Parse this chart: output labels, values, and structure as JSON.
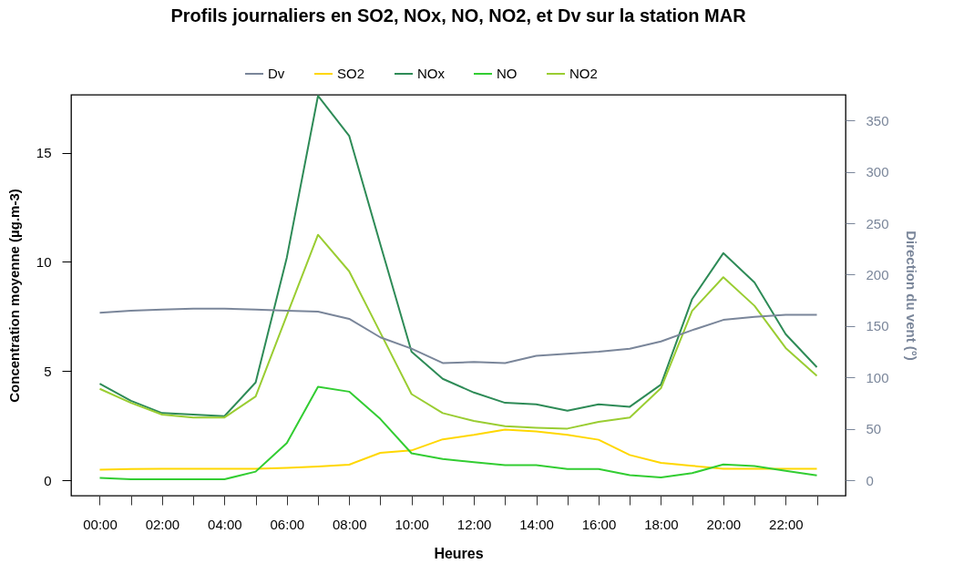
{
  "chart_data": {
    "type": "line",
    "title": "Profils journaliers en SO2, NOx, NO, NO2,  et Dv sur la station MAR",
    "xlabel": "Heures",
    "ylabel": "Concentration moyenne (µg.m-3)",
    "y2label": "Direction du vent (°)",
    "x": [
      0,
      1,
      2,
      3,
      4,
      5,
      6,
      7,
      8,
      9,
      10,
      11,
      12,
      13,
      14,
      15,
      16,
      17,
      18,
      19,
      20,
      21,
      22,
      23
    ],
    "xlim": [
      -0.92,
      23.92
    ],
    "xticks": [
      {
        "value": 0,
        "label": "00:00"
      },
      {
        "value": 1,
        "label": null
      },
      {
        "value": 2,
        "label": "02:00"
      },
      {
        "value": 3,
        "label": null
      },
      {
        "value": 4,
        "label": "04:00"
      },
      {
        "value": 5,
        "label": null
      },
      {
        "value": 6,
        "label": "06:00"
      },
      {
        "value": 7,
        "label": null
      },
      {
        "value": 8,
        "label": "08:00"
      },
      {
        "value": 9,
        "label": null
      },
      {
        "value": 10,
        "label": "10:00"
      },
      {
        "value": 11,
        "label": null
      },
      {
        "value": 12,
        "label": "12:00"
      },
      {
        "value": 13,
        "label": null
      },
      {
        "value": 14,
        "label": "14:00"
      },
      {
        "value": 15,
        "label": null
      },
      {
        "value": 16,
        "label": "16:00"
      },
      {
        "value": 17,
        "label": null
      },
      {
        "value": 18,
        "label": "18:00"
      },
      {
        "value": 19,
        "label": null
      },
      {
        "value": 20,
        "label": "20:00"
      },
      {
        "value": 21,
        "label": null
      },
      {
        "value": 22,
        "label": "22:00"
      },
      {
        "value": 23,
        "label": null
      }
    ],
    "ylim": [
      -0.7,
      17.65
    ],
    "yticks": [
      0,
      5,
      10,
      15
    ],
    "y2lim": [
      -15,
      375
    ],
    "y2ticks": [
      0,
      50,
      100,
      150,
      200,
      250,
      300,
      350
    ],
    "grid": false,
    "legend": "top",
    "marker": "none",
    "line_style": "solid",
    "series": [
      {
        "name": "Dv",
        "color": "#7a869a",
        "axis": "y2",
        "values": [
          163,
          165,
          166,
          167,
          167,
          166,
          165,
          164,
          157,
          139,
          128,
          114,
          115,
          114,
          121,
          123,
          125,
          128,
          135,
          146,
          156,
          159,
          161,
          161
        ]
      },
      {
        "name": "SO2",
        "color": "#ffd700",
        "values": [
          0.49,
          0.52,
          0.53,
          0.53,
          0.53,
          0.53,
          0.57,
          0.63,
          0.72,
          1.26,
          1.37,
          1.88,
          2.08,
          2.32,
          2.24,
          2.08,
          1.86,
          1.16,
          0.8,
          0.67,
          0.53,
          0.53,
          0.53,
          0.53
        ]
      },
      {
        "name": "NOx",
        "color": "#2e8b57",
        "values": [
          4.42,
          3.64,
          3.08,
          3.01,
          2.94,
          4.48,
          10.2,
          17.6,
          15.77,
          10.8,
          5.89,
          4.65,
          4.02,
          3.55,
          3.48,
          3.19,
          3.48,
          3.37,
          4.38,
          8.3,
          10.4,
          9.06,
          6.69,
          5.18
        ]
      },
      {
        "name": "NO",
        "color": "#32cd32",
        "values": [
          0.11,
          0.05,
          0.05,
          0.05,
          0.05,
          0.4,
          1.71,
          4.28,
          4.06,
          2.81,
          1.24,
          0.98,
          0.83,
          0.7,
          0.7,
          0.52,
          0.52,
          0.24,
          0.13,
          0.33,
          0.73,
          0.66,
          0.44,
          0.23
        ]
      },
      {
        "name": "NO2",
        "color": "#9acd32",
        "values": [
          4.19,
          3.55,
          3.01,
          2.88,
          2.88,
          3.84,
          7.55,
          11.24,
          9.57,
          6.76,
          3.95,
          3.08,
          2.72,
          2.48,
          2.41,
          2.37,
          2.68,
          2.88,
          4.22,
          7.76,
          9.3,
          7.99,
          6.06,
          4.78
        ]
      }
    ]
  }
}
